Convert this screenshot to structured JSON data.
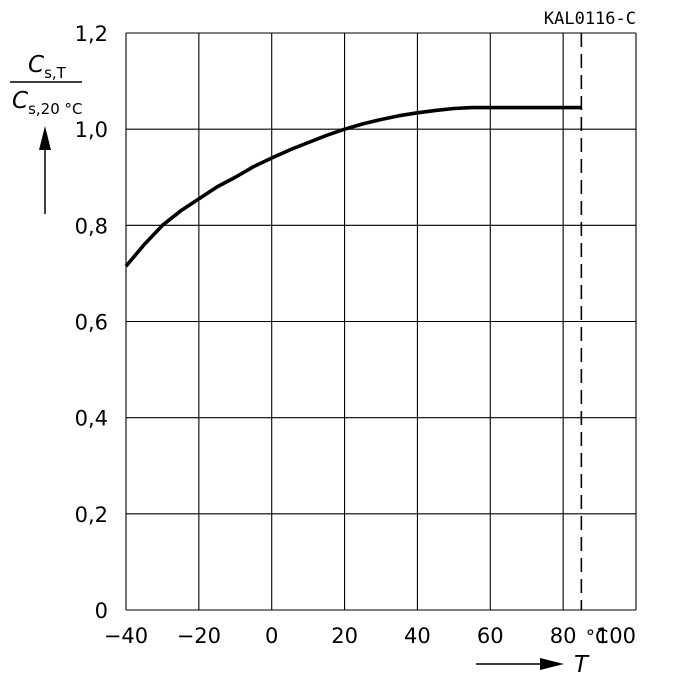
{
  "chart_data": {
    "type": "line",
    "code": "KAL0116-C",
    "x_label": "T",
    "x_unit": "°C",
    "x_ticks": [
      "−40",
      "−20",
      "0",
      "20",
      "40",
      "60",
      "80",
      "100"
    ],
    "y_ticks": [
      "0",
      "0,2",
      "0,4",
      "0,6",
      "0,8",
      "1,0",
      "1,2"
    ],
    "y_label": {
      "numerator": {
        "symbol": "C",
        "subscript": "s,T"
      },
      "denominator": {
        "symbol": "C",
        "subscript": "s,20 °C"
      }
    },
    "xlim": [
      -40,
      100
    ],
    "ylim": [
      0,
      1.2
    ],
    "grid": true,
    "series": [
      {
        "x": [
          -40,
          -35,
          -30,
          -25,
          -20,
          -15,
          -10,
          -5,
          0,
          5,
          10,
          15,
          20,
          25,
          30,
          35,
          40,
          45,
          50,
          55,
          60,
          65,
          70,
          75,
          80,
          85
        ],
        "y": [
          0.715,
          0.76,
          0.8,
          0.83,
          0.855,
          0.88,
          0.9,
          0.922,
          0.94,
          0.957,
          0.972,
          0.987,
          1.0,
          1.011,
          1.02,
          1.028,
          1.034,
          1.039,
          1.043,
          1.045,
          1.045,
          1.045,
          1.045,
          1.045,
          1.045,
          1.045
        ]
      }
    ],
    "reference_line_x": 85
  }
}
